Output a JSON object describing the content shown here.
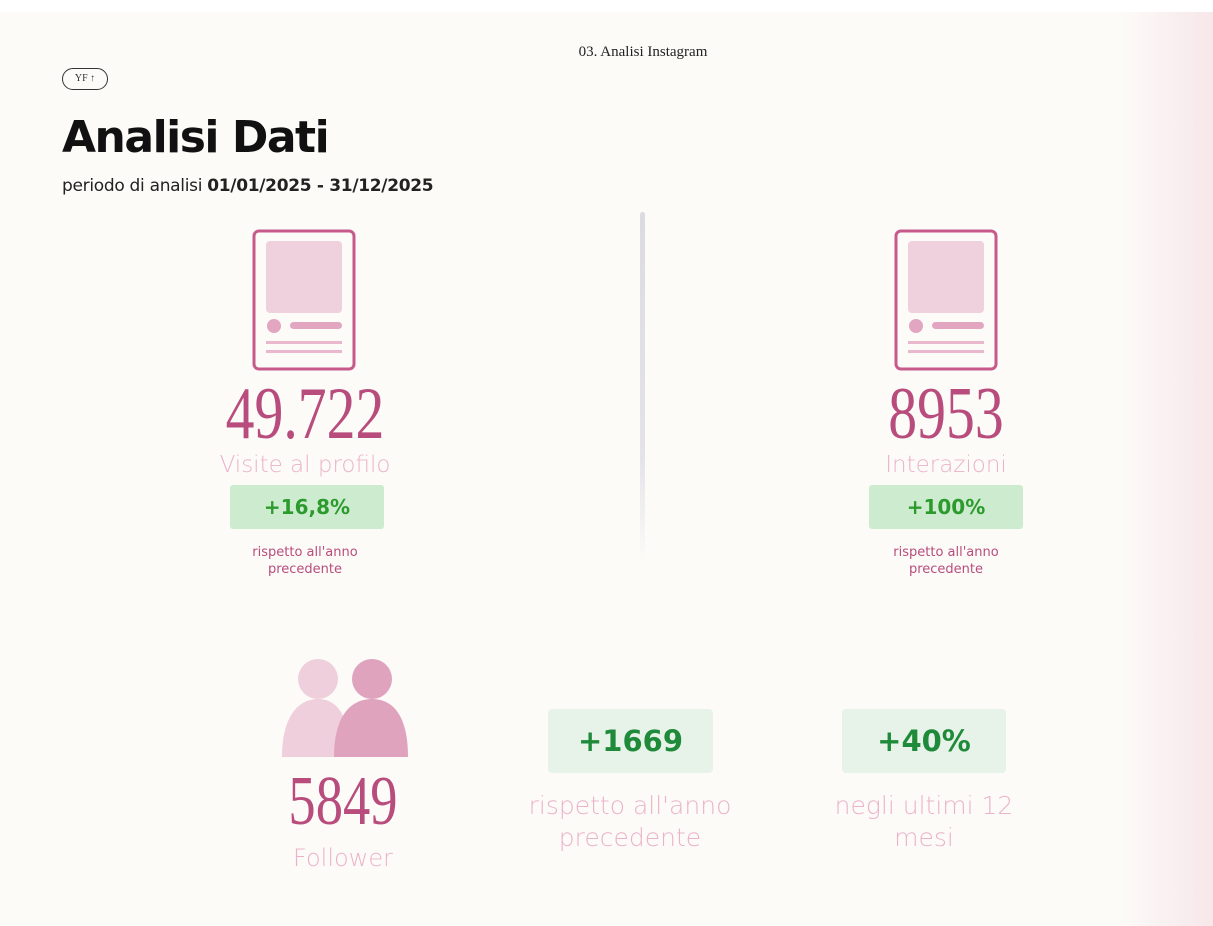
{
  "header": {
    "section": "03. Analisi Instagram",
    "badge": "YF ↑"
  },
  "title": "Analisi Dati",
  "period": {
    "label": "periodo di analisi",
    "range": "01/01/2025  - 31/12/2025"
  },
  "stats": [
    {
      "value": "49.722",
      "label": "Visite al profilo",
      "change": "+16,8%",
      "note": "rispetto all'anno precedente"
    },
    {
      "value": "8953",
      "label": "Interazioni",
      "change": "+100%",
      "note": "rispetto all'anno precedente"
    }
  ],
  "followers": {
    "value": "5849",
    "label": "Follower",
    "changes": [
      {
        "value": "+1669",
        "note": "rispetto all'anno precedente"
      },
      {
        "value": "+40%",
        "note": "negli ultimi 12 mesi"
      }
    ]
  }
}
